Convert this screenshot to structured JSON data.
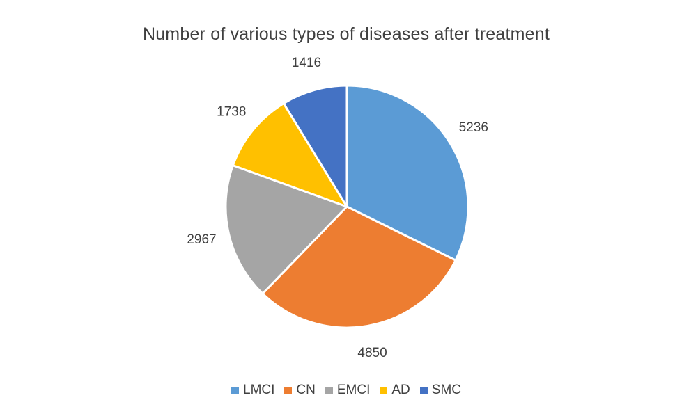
{
  "chart_data": {
    "type": "pie",
    "title": "Number of various types of diseases after treatment",
    "categories": [
      "LMCI",
      "CN",
      "EMCI",
      "AD",
      "SMC"
    ],
    "values": [
      5236,
      4850,
      2967,
      1738,
      1416
    ],
    "colors": [
      "#5b9bd5",
      "#ed7d31",
      "#a5a5a5",
      "#ffc000",
      "#4472c4"
    ],
    "start_angle_deg": 0,
    "direction": "clockwise",
    "data_labels": [
      "5236",
      "4850",
      "2967",
      "1738",
      "1416"
    ],
    "legend_position": "bottom"
  }
}
